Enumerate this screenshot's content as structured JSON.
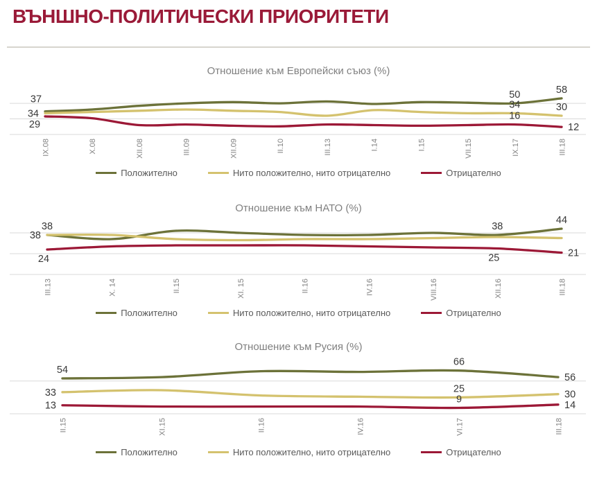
{
  "page": {
    "title": "ВЪНШНО-ПОЛИТИЧЕСКИ ПРИОРИТЕТИ"
  },
  "colors": {
    "title": "#9A1A38",
    "positive": "#6C7239",
    "neutral": "#D4C26E",
    "negative": "#9C1836",
    "grid": "#D9D9D9",
    "divider": "#D7D4CE",
    "axis_text": "#808080",
    "label_text": "#383838",
    "legend_text": "#595959"
  },
  "legend": {
    "positive": "Положително",
    "neutral": "Нито положително, нито отрицателно",
    "negative": "Отрицателно"
  },
  "chart_data": [
    {
      "type": "line",
      "title": "Отношение към Европейски съюз (%)",
      "x": [
        "IX.08",
        "X.08",
        "XII.08",
        "III.09",
        "XII.09",
        "II.10",
        "III.13",
        "I.14",
        "I.15",
        "VII.15",
        "IX.17",
        "III.18"
      ],
      "series": [
        {
          "name": "Положително",
          "key": "positive",
          "values": [
            37,
            40,
            46,
            50,
            52,
            50,
            53,
            49,
            52,
            51,
            50,
            58
          ]
        },
        {
          "name": "Нито положително, нито отрицателно",
          "key": "neutral",
          "values": [
            34,
            36,
            38,
            40,
            38,
            36,
            30,
            39,
            36,
            34,
            34,
            30
          ]
        },
        {
          "name": "Отрицателно",
          "key": "negative",
          "values": [
            29,
            26,
            15,
            16,
            14,
            13,
            16,
            15,
            14,
            15,
            16,
            12
          ]
        }
      ],
      "labels": [
        {
          "s": 0,
          "i": 0,
          "text": "37",
          "pos": "above-left"
        },
        {
          "s": 1,
          "i": 0,
          "text": "34",
          "pos": "left"
        },
        {
          "s": 2,
          "i": 0,
          "text": "29",
          "pos": "below-left"
        },
        {
          "s": 0,
          "i": 10,
          "text": "50",
          "pos": "above"
        },
        {
          "s": 1,
          "i": 10,
          "text": "34",
          "pos": "above"
        },
        {
          "s": 2,
          "i": 10,
          "text": "16",
          "pos": "above"
        },
        {
          "s": 0,
          "i": 11,
          "text": "58",
          "pos": "above"
        },
        {
          "s": 1,
          "i": 11,
          "text": "30",
          "pos": "above"
        },
        {
          "s": 2,
          "i": 11,
          "text": "12",
          "pos": "right"
        }
      ],
      "ylim": [
        0,
        89
      ],
      "gridlines": [
        25,
        50
      ],
      "legend_position": "bottom"
    },
    {
      "type": "line",
      "title": "Отношение към НАТО (%)",
      "x": [
        "III.13",
        "X. 14",
        "II.15",
        "XI. 15",
        "II.16",
        "IV.16",
        "VIII.16",
        "XII.16",
        "III.18"
      ],
      "series": [
        {
          "name": "Положително",
          "key": "positive",
          "values": [
            38,
            34,
            42,
            40,
            38,
            38,
            40,
            38,
            44
          ]
        },
        {
          "name": "Нито положително, нито отрицателно",
          "key": "neutral",
          "values": [
            38,
            38,
            34,
            33,
            34,
            34,
            35,
            36,
            35
          ]
        },
        {
          "name": "Отрицателно",
          "key": "negative",
          "values": [
            24,
            27,
            28,
            28,
            28,
            27,
            26,
            25,
            21
          ]
        }
      ],
      "labels": [
        {
          "s": 1,
          "i": 0,
          "text": "38",
          "pos": "above"
        },
        {
          "s": 0,
          "i": 0,
          "text": "38",
          "pos": "left"
        },
        {
          "s": 2,
          "i": 0,
          "text": "24",
          "pos": "below"
        },
        {
          "s": 0,
          "i": 7,
          "text": "38",
          "pos": "above"
        },
        {
          "s": 2,
          "i": 7,
          "text": "25",
          "pos": "below"
        },
        {
          "s": 0,
          "i": 8,
          "text": "44",
          "pos": "above"
        },
        {
          "s": 2,
          "i": 8,
          "text": "21",
          "pos": "right"
        }
      ],
      "ylim": [
        0,
        56
      ],
      "gridlines": [
        20,
        40
      ],
      "legend_position": "bottom"
    },
    {
      "type": "line",
      "title": "Отношение към Русия (%)",
      "x": [
        "II.15",
        "XI.15",
        "II.16",
        "IV.16",
        "VI.17",
        "III.18"
      ],
      "series": [
        {
          "name": "Положително",
          "key": "positive",
          "values": [
            54,
            56,
            65,
            64,
            66,
            56
          ]
        },
        {
          "name": "Нито положително, нито отрицателно",
          "key": "neutral",
          "values": [
            33,
            36,
            28,
            26,
            25,
            30
          ]
        },
        {
          "name": "Отрицателно",
          "key": "negative",
          "values": [
            13,
            11,
            11,
            11,
            9,
            14
          ]
        }
      ],
      "labels": [
        {
          "s": 0,
          "i": 0,
          "text": "54",
          "pos": "above"
        },
        {
          "s": 1,
          "i": 0,
          "text": "33",
          "pos": "left"
        },
        {
          "s": 2,
          "i": 0,
          "text": "13",
          "pos": "left"
        },
        {
          "s": 0,
          "i": 4,
          "text": "66",
          "pos": "above"
        },
        {
          "s": 1,
          "i": 4,
          "text": "25",
          "pos": "above"
        },
        {
          "s": 2,
          "i": 4,
          "text": "9",
          "pos": "above"
        },
        {
          "s": 0,
          "i": 5,
          "text": "56",
          "pos": "right"
        },
        {
          "s": 1,
          "i": 5,
          "text": "30",
          "pos": "right"
        },
        {
          "s": 2,
          "i": 5,
          "text": "14",
          "pos": "right"
        }
      ],
      "ylim": [
        0,
        90
      ],
      "gridlines": [
        50
      ],
      "legend_position": "bottom"
    }
  ]
}
